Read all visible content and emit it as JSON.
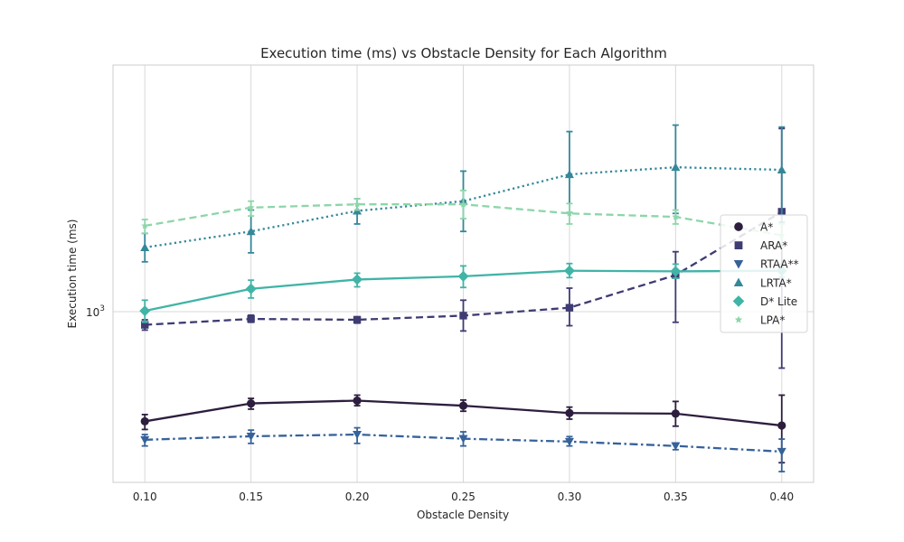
{
  "chart_data": {
    "type": "line",
    "title": "Execution time (ms) vs Obstacle Density for Each Algorithm",
    "xlabel": "Obstacle Density",
    "ylabel": "Execution time (ms)",
    "x": [
      0.1,
      0.15,
      0.2,
      0.25,
      0.3,
      0.35,
      0.4
    ],
    "x_tick_labels": [
      "0.10",
      "0.15",
      "0.20",
      "0.25",
      "0.30",
      "0.35",
      "0.40"
    ],
    "xlim": [
      0.085,
      0.415
    ],
    "y_scale": "log",
    "ylim": [
      340,
      4750
    ],
    "y_major_tick": {
      "value": 1000,
      "label_base": "10",
      "label_exp": "3"
    },
    "grid": true,
    "legend_position": "center-right",
    "series": [
      {
        "name": "A*",
        "marker": "circle",
        "linestyle": "solid",
        "color": "#2d1e3e",
        "values": [
          500,
          560,
          570,
          552,
          527,
          525,
          487
        ],
        "err_low": [
          475,
          540,
          552,
          533,
          507,
          485,
          385
        ],
        "err_high": [
          522,
          578,
          590,
          572,
          547,
          567,
          590
        ]
      },
      {
        "name": "ARA*",
        "marker": "square",
        "linestyle": "dashed",
        "color": "#3f3b73",
        "values": [
          920,
          955,
          950,
          975,
          1025,
          1260,
          1880
        ],
        "err_low": [
          890,
          935,
          930,
          885,
          915,
          935,
          700
        ],
        "err_high": [
          950,
          978,
          968,
          1075,
          1160,
          1460,
          3180
        ]
      },
      {
        "name": "RTAA**",
        "marker": "triangle_down",
        "linestyle": "dashdot",
        "color": "#36629a",
        "values": [
          445,
          455,
          460,
          448,
          440,
          428,
          413
        ],
        "err_low": [
          428,
          435,
          435,
          428,
          428,
          418,
          364
        ],
        "err_high": [
          460,
          473,
          480,
          468,
          454,
          436,
          447
        ]
      },
      {
        "name": "LRTA*",
        "marker": "triangle_up",
        "linestyle": "dotted",
        "color": "#35879a",
        "values": [
          1500,
          1660,
          1890,
          2010,
          2380,
          2490,
          2450
        ],
        "err_low": [
          1370,
          1450,
          1740,
          1660,
          1870,
          1860,
          1760
        ],
        "err_high": [
          1640,
          1900,
          2040,
          2430,
          3120,
          3250,
          3210
        ]
      },
      {
        "name": "D* Lite",
        "marker": "diamond",
        "linestyle": "solid",
        "color": "#40b4a6",
        "values": [
          1005,
          1155,
          1225,
          1250,
          1295,
          1290,
          1295
        ],
        "err_low": [
          935,
          1090,
          1170,
          1165,
          1240,
          1235,
          1245
        ],
        "err_high": [
          1075,
          1220,
          1275,
          1335,
          1355,
          1350,
          1348
        ]
      },
      {
        "name": "LPA*",
        "marker": "star",
        "linestyle": "dashed",
        "color": "#8cd6a9",
        "values": [
          1720,
          1930,
          1970,
          1970,
          1860,
          1820,
          1620
        ],
        "err_low": [
          1640,
          1830,
          1900,
          1800,
          1740,
          1740,
          1500
        ],
        "err_high": [
          1790,
          2010,
          2040,
          2150,
          1980,
          1900,
          1740
        ]
      }
    ]
  }
}
